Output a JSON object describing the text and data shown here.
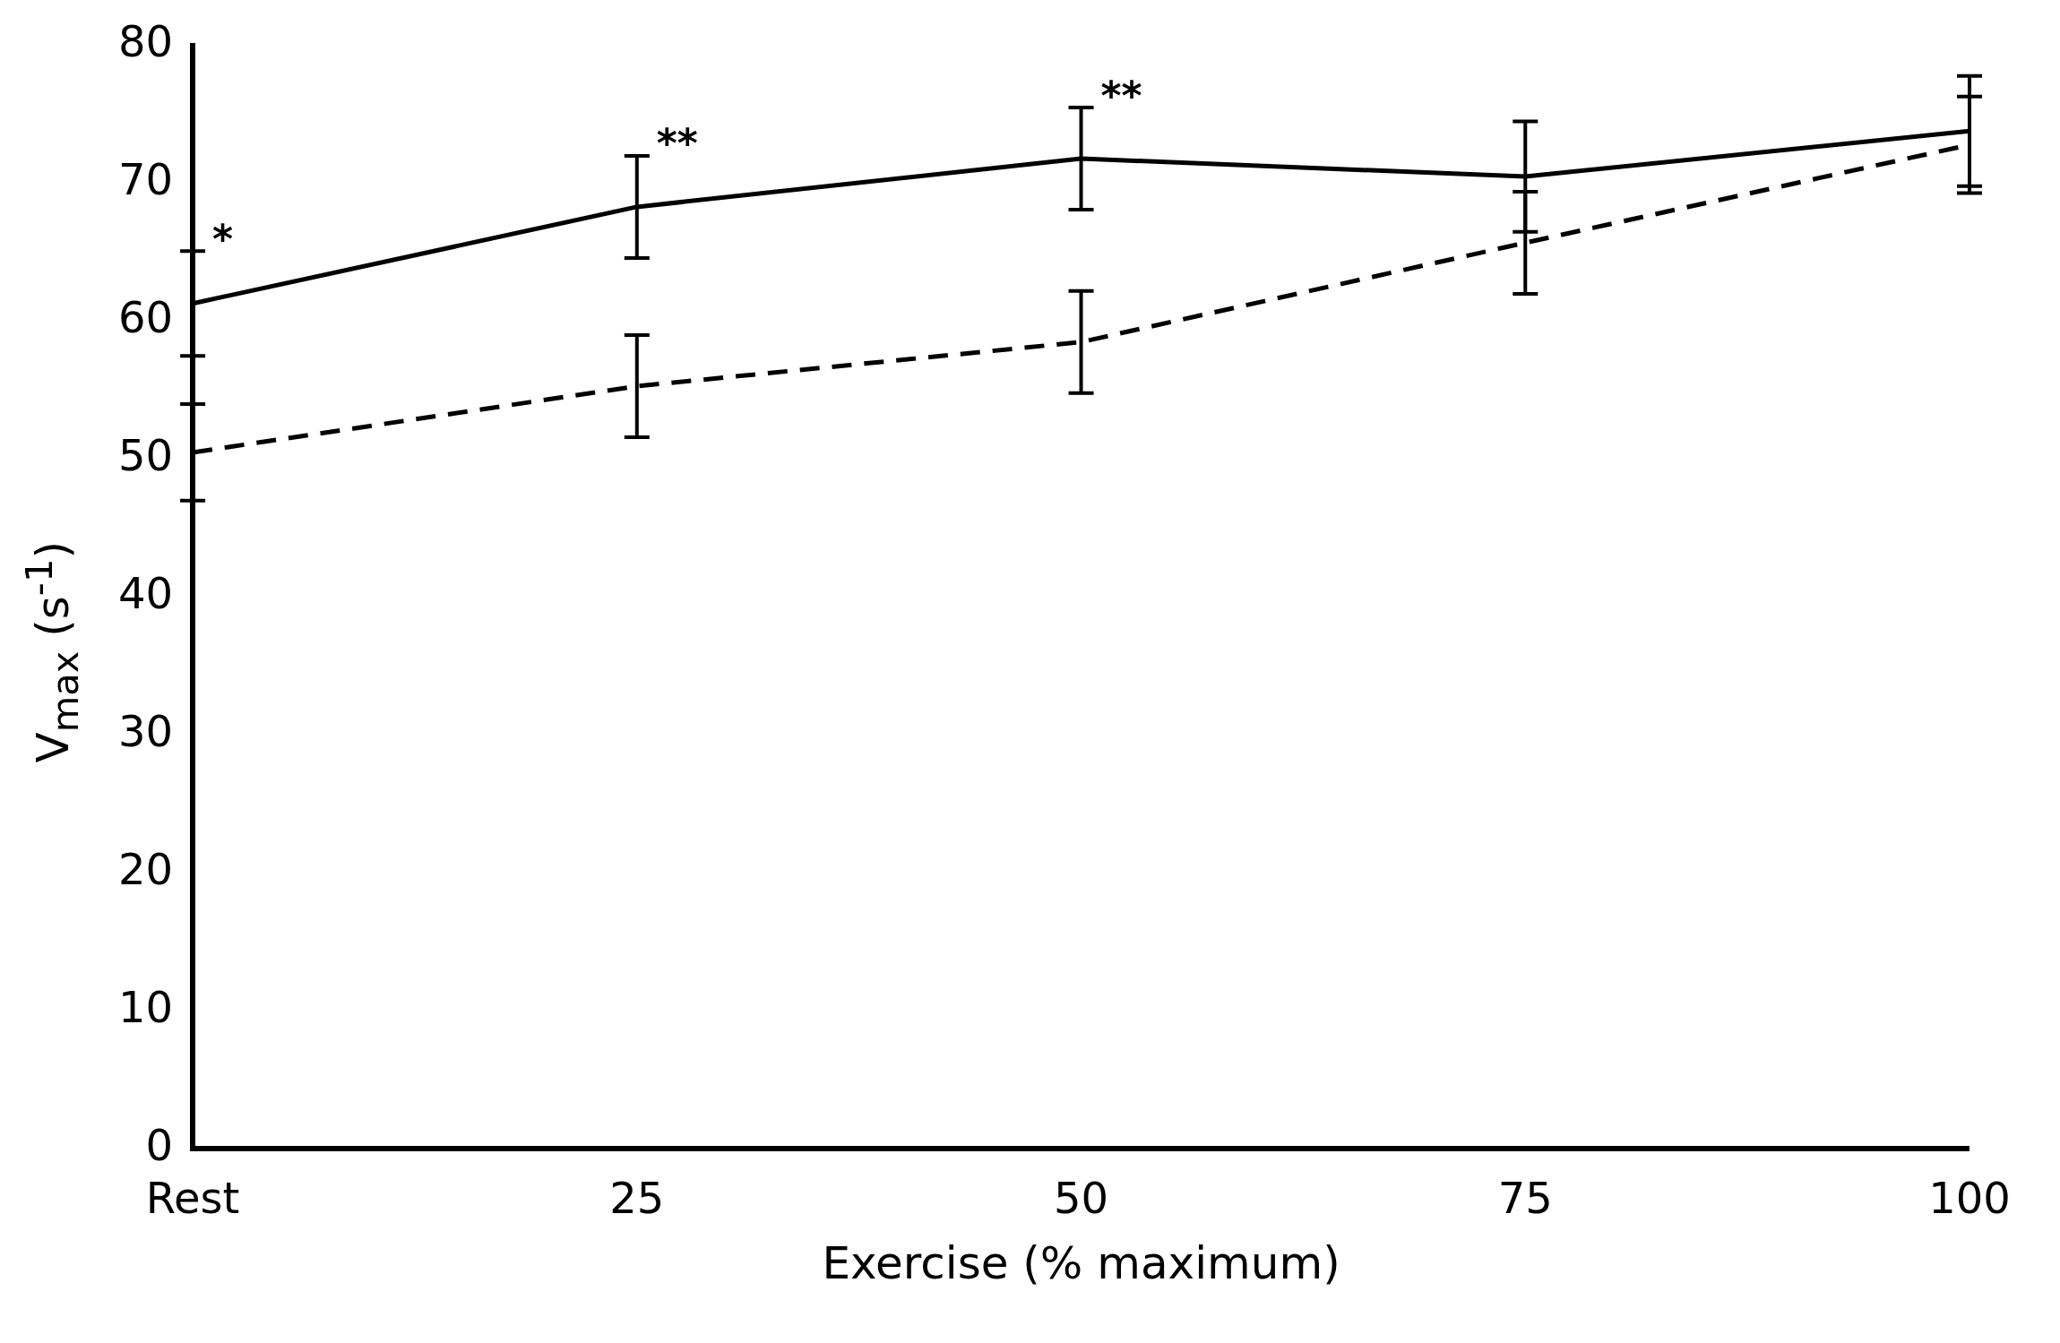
{
  "chart_data": {
    "type": "line",
    "xlabel": "Exercise (% maximum)",
    "ylabel": "V$_{max}$ (s$^{-1}$)",
    "categories": [
      "Rest",
      "25",
      "50",
      "75",
      "100"
    ],
    "series": [
      {
        "color": "#000000",
        "line_style": "solid",
        "values": [
          61.3,
          68.3,
          71.8,
          70.5,
          73.8
        ],
        "errors": [
          3.8,
          3.7,
          3.7,
          4,
          4
        ]
      },
      {
        "color": "#000000",
        "line_style": "dashed",
        "values": [
          50.5,
          55.3,
          58.5,
          65.7,
          72.8
        ],
        "errors": [
          3.5,
          3.7,
          3.7,
          3.7,
          3.5
        ]
      }
    ],
    "ylim": [
      0,
      80
    ],
    "yticks": [
      0,
      10,
      20,
      30,
      40,
      50,
      60,
      70,
      80
    ],
    "grid": false,
    "legend": false,
    "marker": "none",
    "annotations": [
      "*",
      "**",
      "**"
    ]
  }
}
